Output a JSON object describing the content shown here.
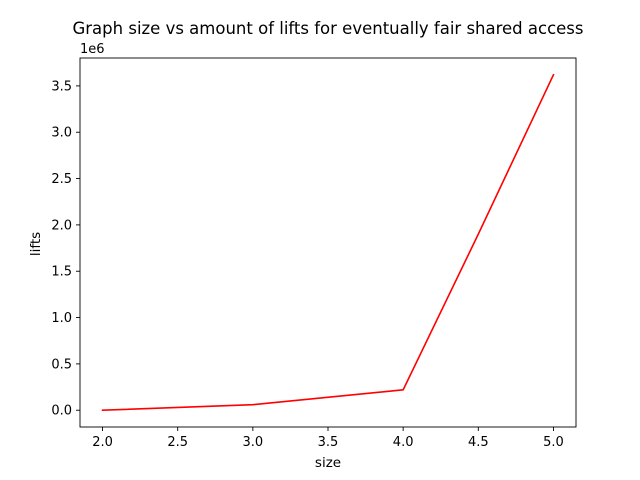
{
  "chart_data": {
    "type": "line",
    "title": "Graph size vs amount of lifts for eventually fair shared access",
    "xlabel": "size",
    "ylabel": "lifts",
    "y_offset_label": "1e6",
    "x": [
      2,
      3,
      4,
      4.5,
      5
    ],
    "series": [
      {
        "color": "#ff0000",
        "values": [
          0,
          60000,
          220000,
          1900000,
          3620000
        ]
      }
    ],
    "xlim": [
      1.85,
      5.15
    ],
    "ylim": [
      -181000,
      3801000
    ],
    "x_ticks": [
      2.0,
      2.5,
      3.0,
      3.5,
      4.0,
      4.5,
      5.0
    ],
    "x_tick_labels": [
      "2.0",
      "2.5",
      "3.0",
      "3.5",
      "4.0",
      "4.5",
      "5.0"
    ],
    "y_ticks": [
      0,
      500000,
      1000000,
      1500000,
      2000000,
      2500000,
      3000000,
      3500000
    ],
    "y_tick_labels": [
      "0.0",
      "0.5",
      "1.0",
      "1.5",
      "2.0",
      "2.5",
      "3.0",
      "3.5"
    ],
    "grid": false,
    "legend": "none"
  }
}
